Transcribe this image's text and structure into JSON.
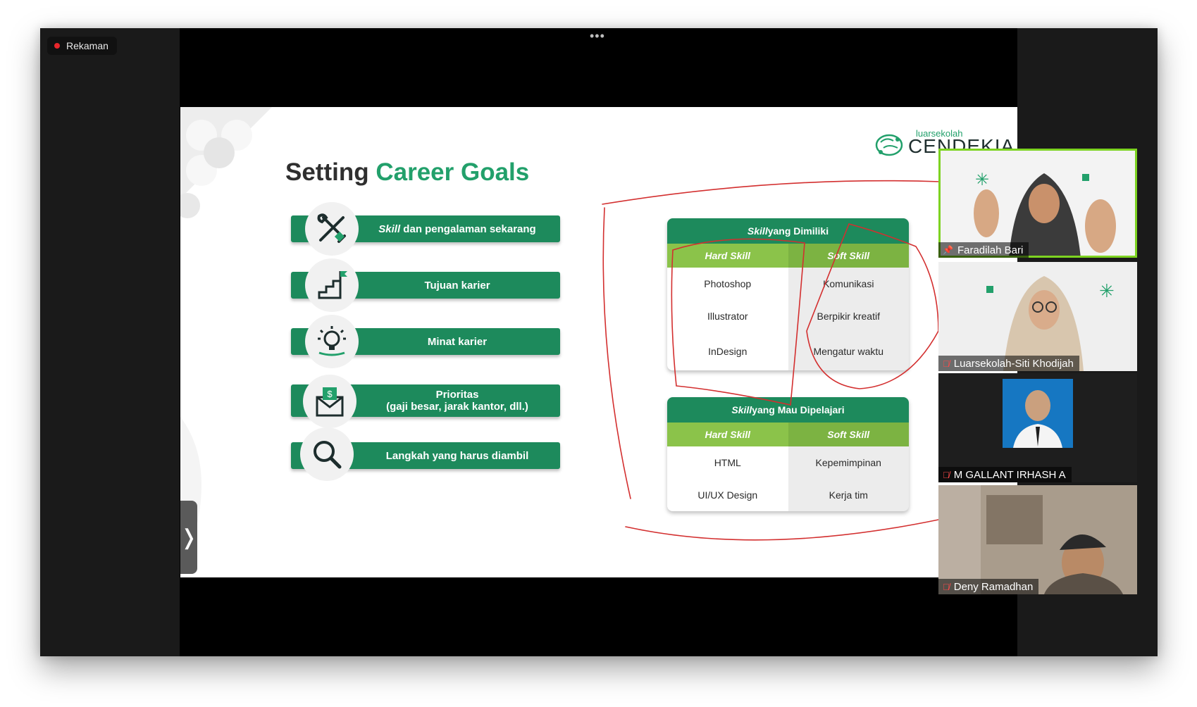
{
  "recording": {
    "label": "Rekaman"
  },
  "toolbar": {
    "more_label": "•••"
  },
  "slide": {
    "title_prefix": "Setting",
    "title_highlight": "Career Goals",
    "logo_small": "luarsekolah",
    "logo_big": "CENDEKIA",
    "goals": [
      {
        "label": "Skill dan pengalaman sekarang",
        "italic_word": "Skill",
        "rest": " dan pengalaman sekarang",
        "icon": "tools-icon"
      },
      {
        "label": "Tujuan karier",
        "icon": "stairs-flag-icon"
      },
      {
        "label": "Minat karier",
        "icon": "lightbulb-icon"
      },
      {
        "label_line1": "Prioritas",
        "label_line2": "(gaji besar, jarak kantor, dll.)",
        "icon": "money-envelope-icon"
      },
      {
        "label": "Langkah yang harus diambil",
        "icon": "magnifier-icon"
      }
    ],
    "owned_skills": {
      "title_italic": "Skill",
      "title_rest": " yang Dimiliki",
      "hard_header": "Hard Skill",
      "soft_header": "Soft Skill",
      "rows": [
        {
          "hard": "Photoshop",
          "soft": "Komunikasi"
        },
        {
          "hard": "Illustrator",
          "soft": "Berpikir kreatif"
        },
        {
          "hard": "InDesign",
          "soft": "Mengatur waktu"
        }
      ]
    },
    "learn_skills": {
      "title_italic": "Skill",
      "title_rest": " yang Mau Dipelajari",
      "hard_header": "Hard Skill",
      "soft_header": "Soft Skill",
      "rows": [
        {
          "hard": "HTML",
          "soft": "Kepemimpinan"
        },
        {
          "hard": "UI/UX Design",
          "soft": "Kerja tim"
        }
      ]
    },
    "side_tab_label": "❭"
  },
  "participants": [
    {
      "name": "Faradilah Bari",
      "status": "pinned",
      "active": true
    },
    {
      "name": "Luarsekolah-Siti Khodijah",
      "status": "muted"
    },
    {
      "name": "M GALLANT IRHASH A",
      "status": "muted"
    },
    {
      "name": "Deny Ramadhan",
      "status": "muted"
    }
  ],
  "colors": {
    "brand_green": "#1d8a5c",
    "accent_green": "#22a06b",
    "light_green": "#8bc34a",
    "ink_red": "#d32f2f",
    "speaker_outline": "#7dd321"
  }
}
